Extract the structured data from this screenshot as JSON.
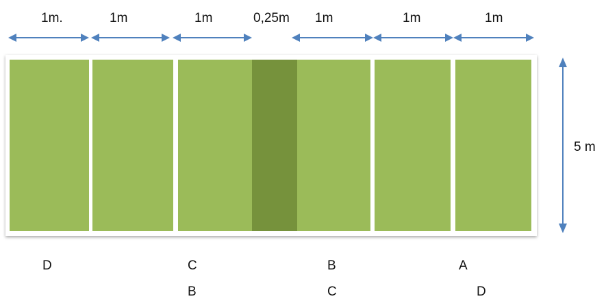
{
  "top_labels": [
    "1m.",
    "1m",
    "1m",
    "0,25m",
    "1m",
    "1m",
    "1m"
  ],
  "height_label": "5 m",
  "row1": [
    "D",
    "C",
    "B",
    "A"
  ],
  "row2": [
    "B",
    "C",
    "D"
  ],
  "colors": {
    "bed": "#9bbb59",
    "path": "#76923c",
    "arrow": "#4f81bd"
  }
}
